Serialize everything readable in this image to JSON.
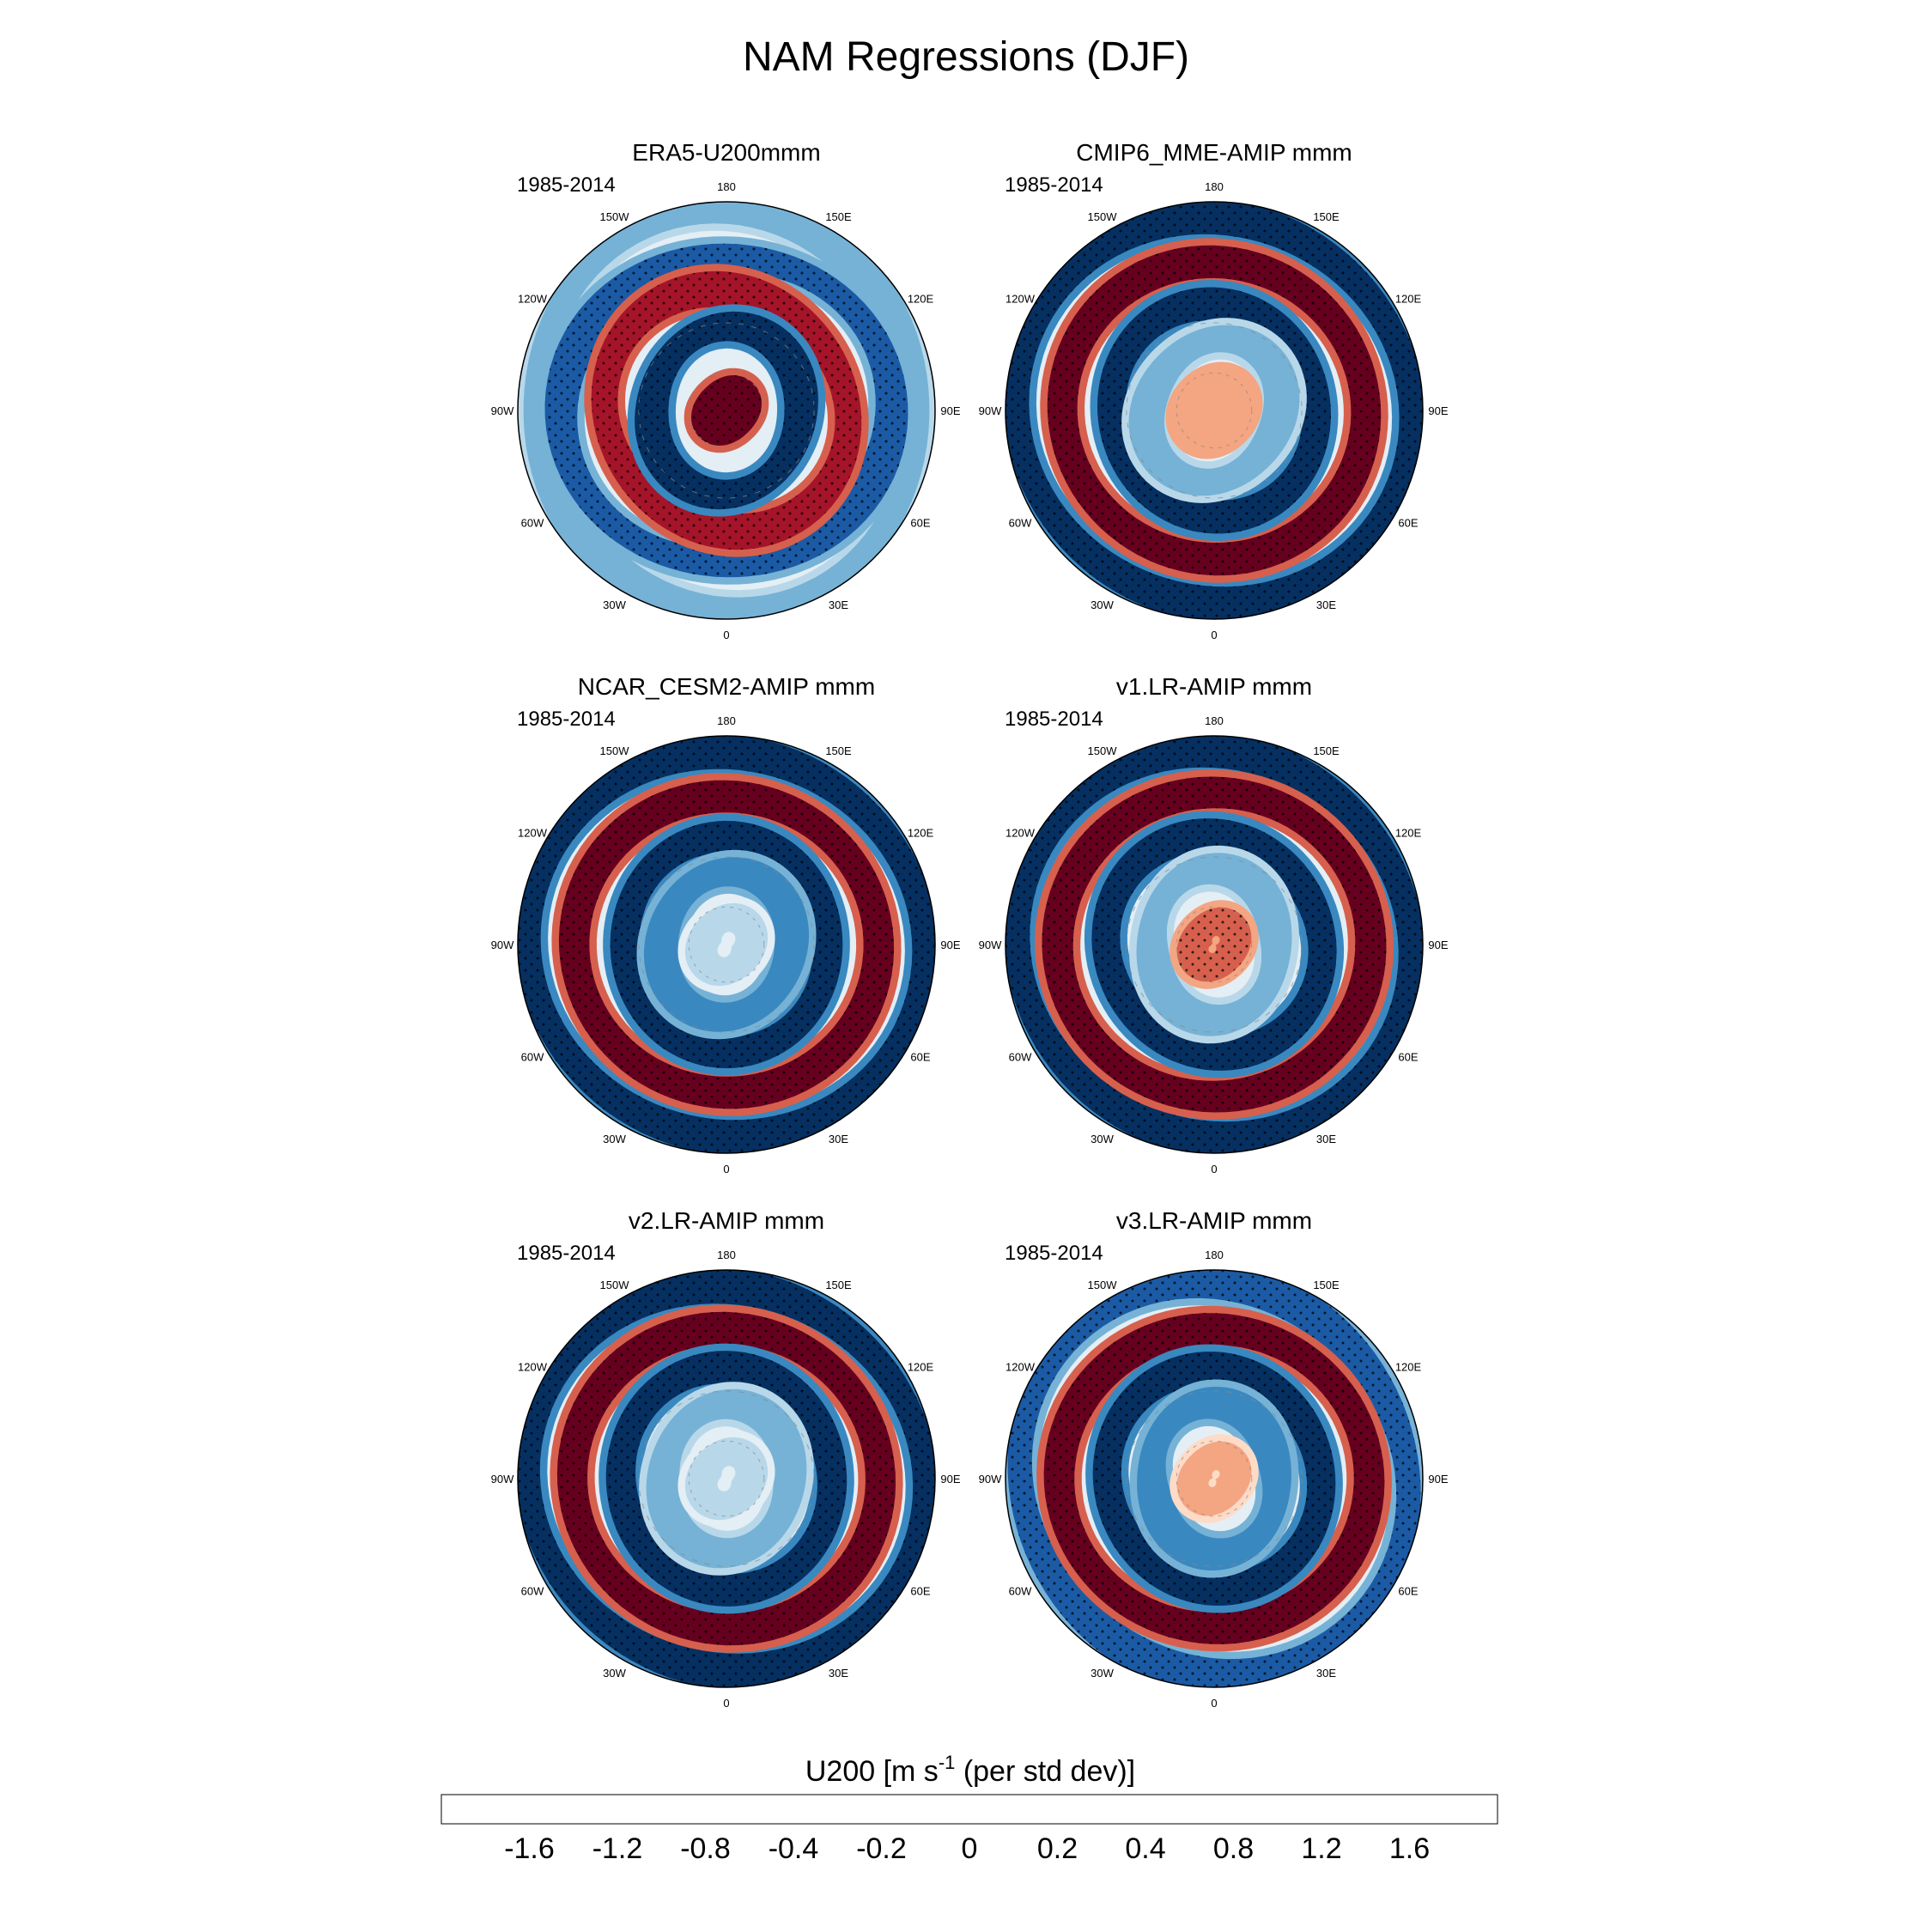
{
  "chart_data": {
    "type": "heatmap",
    "title": "NAM Regressions (DJF)",
    "projection": "north-polar-stereographic",
    "period": "1985-2014",
    "longitude_labels": [
      "180",
      "150E",
      "120E",
      "90E",
      "60E",
      "30E",
      "0",
      "30W",
      "60W",
      "90W",
      "120W",
      "150W"
    ],
    "colorbar": {
      "label_main": "U200 [m s",
      "label_sup": "-1",
      "label_tail": " (per std dev)]",
      "ticks": [
        "-1.6",
        "-1.2",
        "-0.8",
        "-0.4",
        "-0.2",
        "0",
        "0.2",
        "0.4",
        "0.8",
        "1.2",
        "1.6"
      ],
      "colors": [
        "#67001f",
        "#a51429",
        "#d6604d",
        "#f4a582",
        "#fddbc7",
        "#fbeae4",
        "#e4eef5",
        "#b8d8ea",
        "#76b2d6",
        "#3a88c0",
        "#1b5aa5",
        "#053061"
      ]
    },
    "panels": [
      {
        "title": "ERA5-U200mmm",
        "period": "1985-2014",
        "rings": [
          {
            "r": 0.09,
            "v": -1.8
          },
          {
            "r": 0.38,
            "v": 1.6,
            "amp": 0.45,
            "phase": 40
          },
          {
            "r": 0.58,
            "v": -1.6,
            "amp": 0.5,
            "phase": 160
          },
          {
            "r": 0.76,
            "v": 1.2,
            "amp": 0.6,
            "phase": 260
          },
          {
            "r": 0.94,
            "v": 0.5,
            "amp": 0.7,
            "phase": 90
          }
        ]
      },
      {
        "title": "CMIP6_MME-AMIP  mmm",
        "period": "1985-2014",
        "rings": [
          {
            "r": 0.12,
            "v": -0.8
          },
          {
            "r": 0.33,
            "v": 0.4,
            "amp": 0.5,
            "phase": 0
          },
          {
            "r": 0.5,
            "v": 1.8,
            "amp": 0.3,
            "phase": 120
          },
          {
            "r": 0.72,
            "v": -1.8,
            "amp": 0.2,
            "phase": 200
          },
          {
            "r": 0.94,
            "v": 1.8,
            "amp": 0.5,
            "phase": 180
          }
        ]
      },
      {
        "title": "NCAR_CESM2-AMIP  mmm",
        "period": "1985-2014",
        "rings": [
          {
            "r": 0.12,
            "v": 0.2
          },
          {
            "r": 0.33,
            "v": 0.8,
            "amp": 0.4,
            "phase": 30
          },
          {
            "r": 0.5,
            "v": 1.8,
            "amp": 0.3,
            "phase": 90
          },
          {
            "r": 0.72,
            "v": -1.8,
            "amp": 0.2,
            "phase": 220
          },
          {
            "r": 0.94,
            "v": 1.8,
            "amp": 0.5,
            "phase": 190
          }
        ]
      },
      {
        "title": "v1.LR-AMIP  mmm",
        "period": "1985-2014",
        "rings": [
          {
            "r": 0.1,
            "v": -1.2
          },
          {
            "r": 0.33,
            "v": 0.6,
            "amp": 0.6,
            "phase": 70
          },
          {
            "r": 0.52,
            "v": 1.7,
            "amp": 0.3,
            "phase": 150
          },
          {
            "r": 0.74,
            "v": -1.8,
            "amp": 0.2,
            "phase": 240
          },
          {
            "r": 0.94,
            "v": 1.6,
            "amp": 0.5,
            "phase": 170
          }
        ]
      },
      {
        "title": "v2.LR-AMIP  mmm",
        "period": "1985-2014",
        "rings": [
          {
            "r": 0.12,
            "v": 0.2
          },
          {
            "r": 0.33,
            "v": 0.6,
            "amp": 0.5,
            "phase": 50
          },
          {
            "r": 0.52,
            "v": 1.6,
            "amp": 0.3,
            "phase": 100
          },
          {
            "r": 0.73,
            "v": -1.8,
            "amp": 0.2,
            "phase": 210
          },
          {
            "r": 0.94,
            "v": 1.6,
            "amp": 0.6,
            "phase": 185
          }
        ]
      },
      {
        "title": "v3.LR-AMIP  mmm",
        "period": "1985-2014",
        "rings": [
          {
            "r": 0.1,
            "v": -0.6
          },
          {
            "r": 0.33,
            "v": 0.8,
            "amp": 0.6,
            "phase": 80
          },
          {
            "r": 0.52,
            "v": 1.7,
            "amp": 0.3,
            "phase": 130
          },
          {
            "r": 0.73,
            "v": -1.8,
            "amp": 0.25,
            "phase": 230
          },
          {
            "r": 0.94,
            "v": 1.2,
            "amp": 0.7,
            "phase": 140
          }
        ]
      }
    ]
  }
}
